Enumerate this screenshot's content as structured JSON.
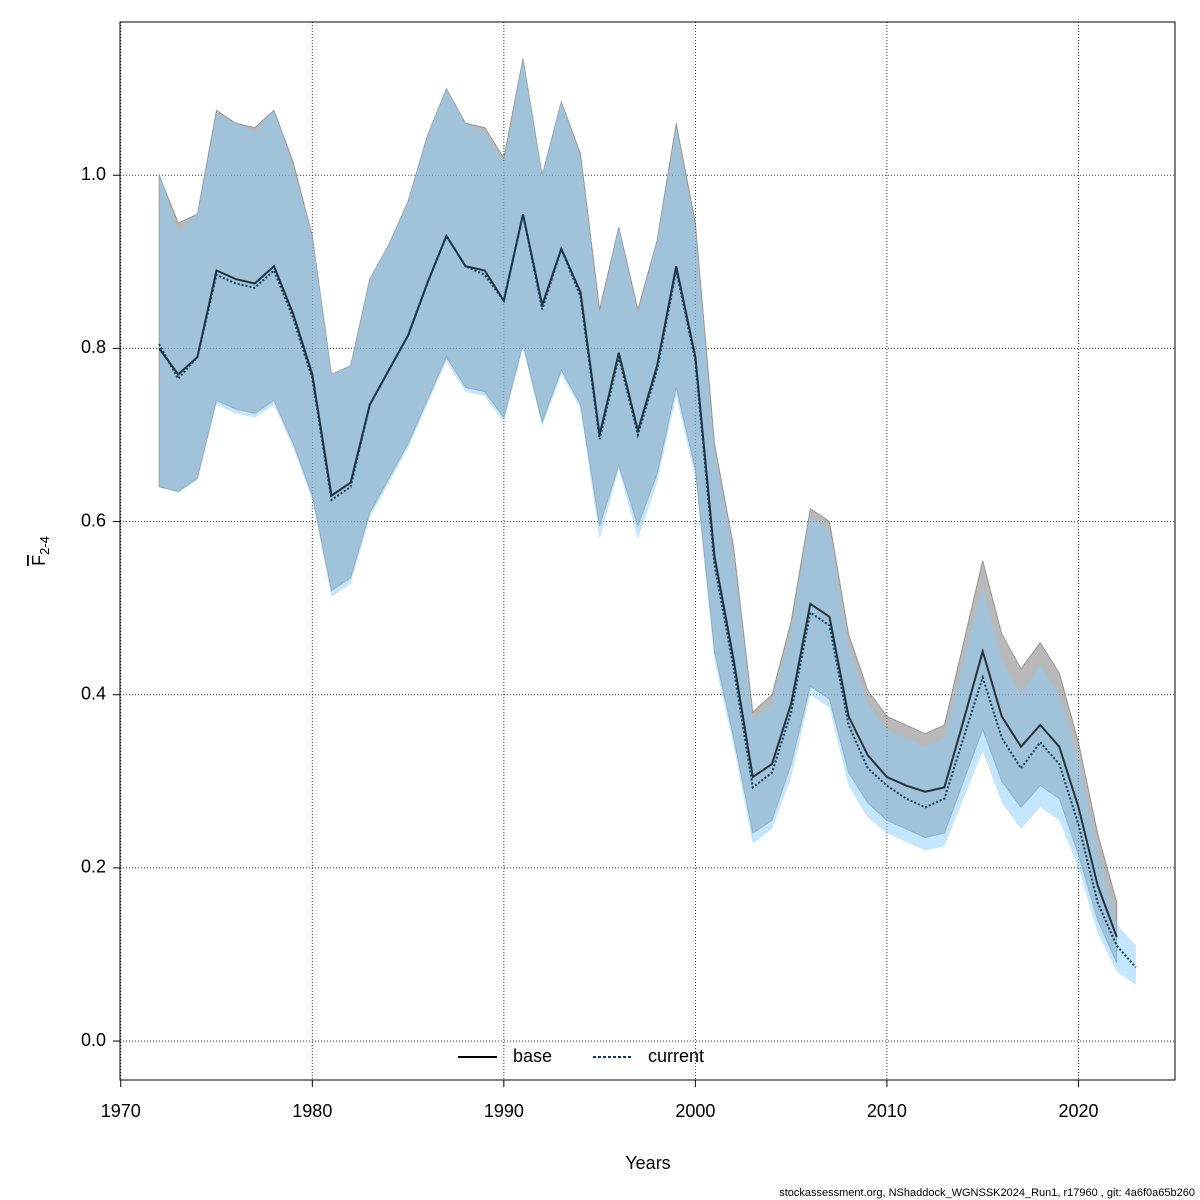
{
  "chart_data": {
    "type": "line",
    "xlabel": "Years",
    "ylabel": "F",
    "ylabel_sub": "2-4",
    "footer": "stockassessment.org, NShaddock_WGNSSK2024_Run1, r17960 , git: 4a6f0a65b260",
    "xlim": [
      1969.96,
      2025.04
    ],
    "ylim": [
      -0.045,
      1.177
    ],
    "xticks": [
      1970,
      1980,
      1990,
      2000,
      2010,
      2020
    ],
    "yticks": [
      {
        "value": 0,
        "label": "0.0"
      },
      0.2,
      0.4,
      0.6,
      0.8,
      {
        "value": 1,
        "label": "1.0"
      }
    ],
    "grid": true,
    "legend": "bottom",
    "series": [
      {
        "name": "base",
        "color": "#000000",
        "dash": false,
        "band_color": "rgba(128,128,128,0.55)",
        "x": [
          1972,
          1973,
          1974,
          1975,
          1976,
          1977,
          1978,
          1979,
          1980,
          1981,
          1982,
          1983,
          1984,
          1985,
          1986,
          1987,
          1988,
          1989,
          1990,
          1991,
          1992,
          1993,
          1994,
          1995,
          1996,
          1997,
          1998,
          1999,
          2000,
          2001,
          2002,
          2003,
          2004,
          2005,
          2006,
          2007,
          2008,
          2009,
          2010,
          2011,
          2012,
          2013,
          2014,
          2015,
          2016,
          2017,
          2018,
          2019,
          2020,
          2021,
          2022
        ],
        "values": [
          0.8,
          0.77,
          0.79,
          0.89,
          0.88,
          0.875,
          0.895,
          0.84,
          0.77,
          0.63,
          0.645,
          0.735,
          0.775,
          0.815,
          0.875,
          0.93,
          0.895,
          0.89,
          0.855,
          0.955,
          0.85,
          0.915,
          0.865,
          0.7,
          0.795,
          0.705,
          0.78,
          0.895,
          0.79,
          0.56,
          0.44,
          0.305,
          0.32,
          0.39,
          0.505,
          0.49,
          0.375,
          0.33,
          0.305,
          0.295,
          0.288,
          0.293,
          0.37,
          0.45,
          0.375,
          0.34,
          0.365,
          0.34,
          0.27,
          0.18,
          0.12
        ],
        "upper": [
          1.0,
          0.945,
          0.955,
          1.075,
          1.06,
          1.055,
          1.075,
          1.015,
          0.93,
          0.77,
          0.78,
          0.88,
          0.92,
          0.97,
          1.045,
          1.1,
          1.06,
          1.055,
          1.02,
          1.135,
          1.0,
          1.085,
          1.025,
          0.845,
          0.94,
          0.845,
          0.925,
          1.06,
          0.945,
          0.69,
          0.57,
          0.38,
          0.4,
          0.485,
          0.615,
          0.6,
          0.47,
          0.405,
          0.375,
          0.365,
          0.355,
          0.365,
          0.46,
          0.555,
          0.47,
          0.43,
          0.46,
          0.425,
          0.345,
          0.24,
          0.16
        ],
        "lower": [
          0.64,
          0.635,
          0.65,
          0.74,
          0.73,
          0.725,
          0.74,
          0.69,
          0.63,
          0.52,
          0.535,
          0.61,
          0.65,
          0.69,
          0.74,
          0.79,
          0.755,
          0.75,
          0.72,
          0.805,
          0.715,
          0.775,
          0.735,
          0.595,
          0.665,
          0.595,
          0.655,
          0.755,
          0.66,
          0.45,
          0.35,
          0.24,
          0.255,
          0.32,
          0.41,
          0.395,
          0.31,
          0.275,
          0.255,
          0.245,
          0.235,
          0.24,
          0.3,
          0.36,
          0.3,
          0.27,
          0.295,
          0.28,
          0.215,
          0.14,
          0.09
        ]
      },
      {
        "name": "current",
        "color": "#0a3d62",
        "dash": true,
        "band_color": "rgba(135,206,250,0.5)",
        "x": [
          1972,
          1973,
          1974,
          1975,
          1976,
          1977,
          1978,
          1979,
          1980,
          1981,
          1982,
          1983,
          1984,
          1985,
          1986,
          1987,
          1988,
          1989,
          1990,
          1991,
          1992,
          1993,
          1994,
          1995,
          1996,
          1997,
          1998,
          1999,
          2000,
          2001,
          2002,
          2003,
          2004,
          2005,
          2006,
          2007,
          2008,
          2009,
          2010,
          2011,
          2012,
          2013,
          2014,
          2015,
          2016,
          2017,
          2018,
          2019,
          2020,
          2021,
          2022,
          2023
        ],
        "values": [
          0.805,
          0.765,
          0.79,
          0.885,
          0.875,
          0.87,
          0.89,
          0.835,
          0.765,
          0.625,
          0.64,
          0.735,
          0.775,
          0.815,
          0.875,
          0.93,
          0.895,
          0.885,
          0.855,
          0.955,
          0.845,
          0.915,
          0.86,
          0.695,
          0.79,
          0.7,
          0.775,
          0.89,
          0.785,
          0.55,
          0.43,
          0.293,
          0.31,
          0.38,
          0.495,
          0.48,
          0.365,
          0.315,
          0.295,
          0.28,
          0.27,
          0.28,
          0.35,
          0.42,
          0.35,
          0.315,
          0.345,
          0.32,
          0.25,
          0.16,
          0.11,
          0.085
        ],
        "upper": [
          1.005,
          0.935,
          0.955,
          1.07,
          1.06,
          1.05,
          1.075,
          1.01,
          0.93,
          0.77,
          0.78,
          0.88,
          0.92,
          0.97,
          1.045,
          1.1,
          1.06,
          1.05,
          1.015,
          1.135,
          1.0,
          1.085,
          1.02,
          0.84,
          0.94,
          0.84,
          0.925,
          1.055,
          0.94,
          0.68,
          0.56,
          0.37,
          0.39,
          0.475,
          0.605,
          0.59,
          0.455,
          0.39,
          0.36,
          0.35,
          0.34,
          0.35,
          0.44,
          0.525,
          0.44,
          0.4,
          0.435,
          0.4,
          0.325,
          0.22,
          0.135,
          0.11
        ],
        "lower": [
          0.64,
          0.633,
          0.648,
          0.735,
          0.725,
          0.72,
          0.735,
          0.685,
          0.625,
          0.513,
          0.528,
          0.605,
          0.645,
          0.685,
          0.735,
          0.785,
          0.75,
          0.745,
          0.715,
          0.8,
          0.71,
          0.77,
          0.73,
          0.58,
          0.66,
          0.58,
          0.645,
          0.745,
          0.65,
          0.44,
          0.34,
          0.228,
          0.245,
          0.305,
          0.4,
          0.385,
          0.295,
          0.258,
          0.24,
          0.23,
          0.22,
          0.225,
          0.28,
          0.335,
          0.275,
          0.245,
          0.27,
          0.255,
          0.2,
          0.125,
          0.08,
          0.065
        ]
      }
    ]
  }
}
